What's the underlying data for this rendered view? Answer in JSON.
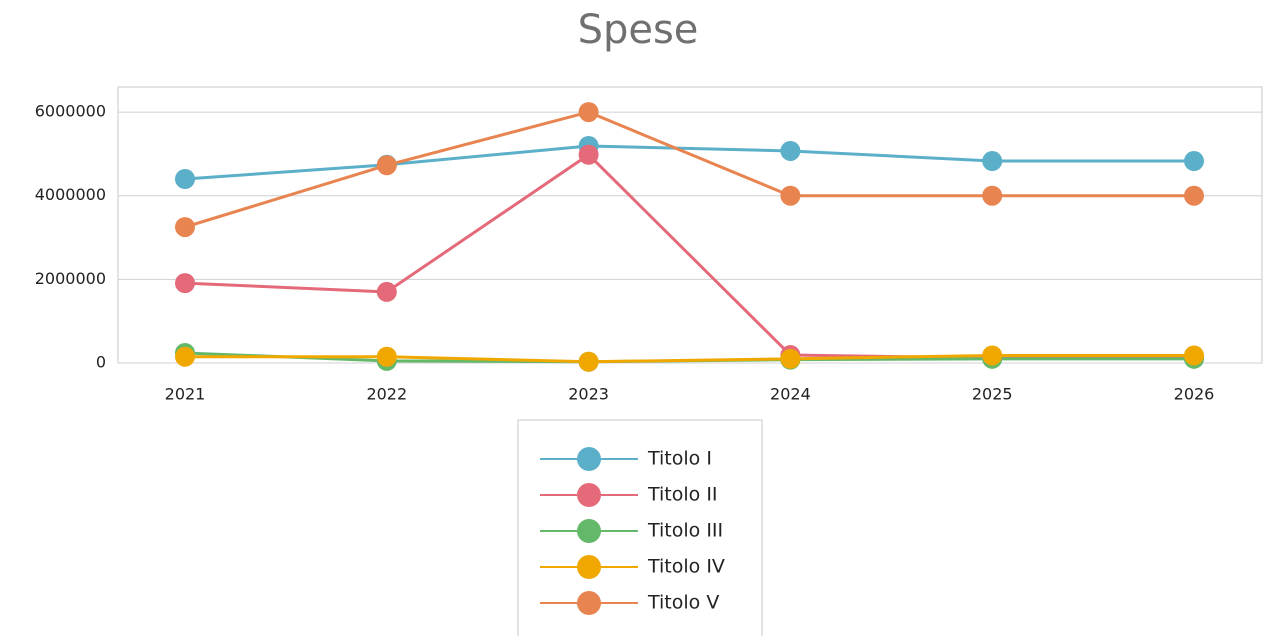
{
  "chart_data": {
    "type": "line",
    "title": "Spese",
    "categories": [
      "2021",
      "2022",
      "2023",
      "2024",
      "2025",
      "2026"
    ],
    "series": [
      {
        "name": "Titolo I",
        "color": "#5bafc9",
        "values": [
          4400000,
          4740000,
          5190000,
          5070000,
          4830000,
          4830000
        ]
      },
      {
        "name": "Titolo II",
        "color": "#e46a7a",
        "values": [
          1910000,
          1700000,
          4980000,
          190000,
          120000,
          120000
        ]
      },
      {
        "name": "Titolo III",
        "color": "#63b86a",
        "values": [
          240000,
          50000,
          30000,
          80000,
          100000,
          100000
        ]
      },
      {
        "name": "Titolo IV",
        "color": "#f0a800",
        "values": [
          150000,
          150000,
          30000,
          100000,
          180000,
          180000
        ]
      },
      {
        "name": "Titolo V",
        "color": "#e8844f",
        "values": [
          3250000,
          4730000,
          6000000,
          4000000,
          4000000,
          4000000
        ]
      }
    ],
    "ylim": [
      0,
      6600000
    ],
    "yticks": [
      0,
      2000000,
      4000000,
      6000000
    ],
    "grid": true
  }
}
